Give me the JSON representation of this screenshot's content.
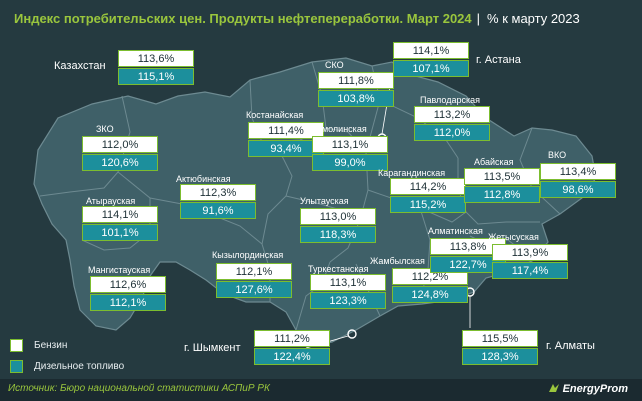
{
  "header": {
    "title": "Индекс потребительских цен. Продукты нефтепереработки. Март 2024",
    "separator": "|",
    "subtitle": "% к марту 2023"
  },
  "map_colors": {
    "land": "#3f6068",
    "border": "#6d8a91",
    "box_border": "#7cbd2f",
    "benzin_fill": "#ffffff",
    "diesel_fill": "#1c8f9c"
  },
  "kazakhstan": {
    "label": "Казахстан",
    "benzin": "113,6%",
    "diesel": "115,1%"
  },
  "regions": {
    "zko": {
      "label": "ЗКО",
      "benzin": "112,0%",
      "diesel": "120,6%"
    },
    "aktobe": {
      "label": "Актюбинская",
      "benzin": "112,3%",
      "diesel": "91,6%"
    },
    "atyrau": {
      "label": "Атырауская",
      "benzin": "114,1%",
      "diesel": "101,1%"
    },
    "mangistau": {
      "label": "Мангистауская",
      "benzin": "112,6%",
      "diesel": "112,1%"
    },
    "kostanay": {
      "label": "Костанайская",
      "benzin": "111,4%",
      "diesel": "93,4%"
    },
    "sko": {
      "label": "СКО",
      "benzin": "111,8%",
      "diesel": "103,8%"
    },
    "akmola": {
      "label": "Акмолинская",
      "benzin": "113,1%",
      "diesel": "99,0%"
    },
    "astana": {
      "label": "г. Астана",
      "benzin": "114,1%",
      "diesel": "107,1%"
    },
    "pavlodar": {
      "label": "Павлодарская",
      "benzin": "113,2%",
      "diesel": "112,0%"
    },
    "karaganda": {
      "label": "Карагандинская",
      "benzin": "114,2%",
      "diesel": "115,2%"
    },
    "ulytau": {
      "label": "Улытауская",
      "benzin": "113,0%",
      "diesel": "118,3%"
    },
    "abay": {
      "label": "Абайская",
      "benzin": "113,5%",
      "diesel": "112,8%"
    },
    "vko": {
      "label": "ВКО",
      "benzin": "113,4%",
      "diesel": "98,6%"
    },
    "kyzylorda": {
      "label": "Кызылординская",
      "benzin": "112,1%",
      "diesel": "127,6%"
    },
    "turkestan": {
      "label": "Туркестанская",
      "benzin": "113,1%",
      "diesel": "123,3%"
    },
    "zhambyl": {
      "label": "Жамбылская",
      "benzin": "112,2%",
      "diesel": "124,8%"
    },
    "almaty_obl": {
      "label": "Алматинская",
      "benzin": "113,8%",
      "diesel": "122,7%"
    },
    "zhetysu": {
      "label": "Жетысуская",
      "benzin": "113,9%",
      "diesel": "117,4%"
    },
    "shymkent": {
      "label": "г. Шымкент",
      "benzin": "111,2%",
      "diesel": "122,4%"
    },
    "almaty": {
      "label": "г. Алматы",
      "benzin": "115,5%",
      "diesel": "128,3%"
    }
  },
  "legend": {
    "benzin": "Бензин",
    "diesel": "Дизельное топливо"
  },
  "footer": {
    "source": "Источник: Бюро национальной статистики АСПиР РК",
    "brand": "EnergyProm"
  }
}
